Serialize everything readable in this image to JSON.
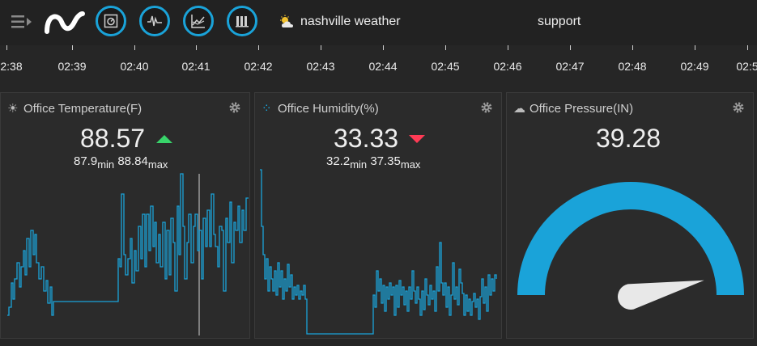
{
  "header": {
    "nav": [
      {
        "label": "nashville weather",
        "icon": "weather-icon"
      },
      {
        "label": "support"
      }
    ],
    "circle_buttons": [
      {
        "icon": "dashboard-icon"
      },
      {
        "icon": "waveform-icon"
      },
      {
        "icon": "chart-trend-icon"
      },
      {
        "icon": "data-grid-icon"
      }
    ],
    "accent_color": "#1aa3d9"
  },
  "timeline": {
    "labels": [
      "2:38",
      "02:39",
      "02:40",
      "02:41",
      "02:42",
      "02:43",
      "02:44",
      "02:45",
      "02:46",
      "02:47",
      "02:48",
      "02:49",
      "02:5"
    ]
  },
  "panels": [
    {
      "title": "Office Temperature(F)",
      "icon": "sun-icon",
      "value": "88.57",
      "trend": "up",
      "min": "87.9",
      "min_label": "min",
      "max": "88.84",
      "max_label": "max"
    },
    {
      "title": "Office Humidity(%)",
      "icon": "droplets-icon",
      "value": "33.33",
      "trend": "down",
      "min": "32.2",
      "min_label": "min",
      "max": "37.35",
      "max_label": "max"
    },
    {
      "title": "Office Pressure(IN)",
      "icon": "cloud-icon",
      "value": "39.28",
      "gauge_fraction": 0.93
    }
  ]
}
